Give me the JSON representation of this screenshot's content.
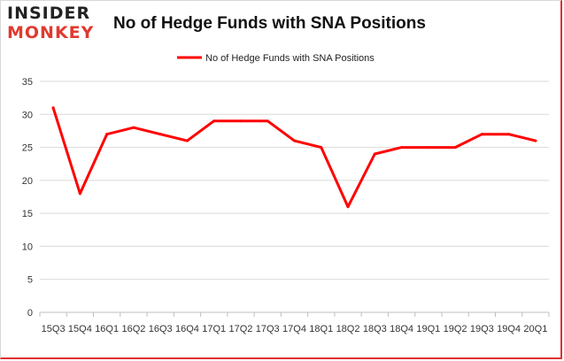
{
  "brand": {
    "line1": "INSIDER",
    "line2": "MONKEY"
  },
  "colors": {
    "series": "#ff0000",
    "brand_red": "#e03a2f",
    "grid": "#d9d9d9"
  },
  "chart_data": {
    "type": "line",
    "title": "No of Hedge Funds with SNA Positions",
    "xlabel": "",
    "ylabel": "",
    "ylim": [
      0,
      35
    ],
    "yticks": [
      0,
      5,
      10,
      15,
      20,
      25,
      30,
      35
    ],
    "grid": true,
    "legend_position": "top",
    "categories": [
      "15Q3",
      "15Q4",
      "16Q1",
      "16Q2",
      "16Q3",
      "16Q4",
      "17Q1",
      "17Q2",
      "17Q3",
      "17Q4",
      "18Q1",
      "18Q2",
      "18Q3",
      "18Q4",
      "19Q1",
      "19Q2",
      "19Q3",
      "19Q4",
      "20Q1"
    ],
    "x_tick_labels": [
      "15Q3",
      "15Q4",
      "16Q1",
      "16Q2",
      "16Q3",
      "16Q4",
      "17Q1",
      "17Q2",
      "17Q3",
      "17Q4",
      "18Q1",
      "18Q2",
      "18Q3",
      "18Q4",
      "19Q1",
      "19Q2",
      "19Q3",
      "19Q4",
      "20Q1"
    ],
    "series": [
      {
        "name": "No of Hedge Funds with SNA Positions",
        "color": "#ff0000",
        "values": [
          31,
          18,
          27,
          28,
          27,
          26,
          29,
          29,
          29,
          26,
          25,
          16,
          24,
          25,
          25,
          25,
          27,
          27,
          26
        ]
      }
    ]
  }
}
